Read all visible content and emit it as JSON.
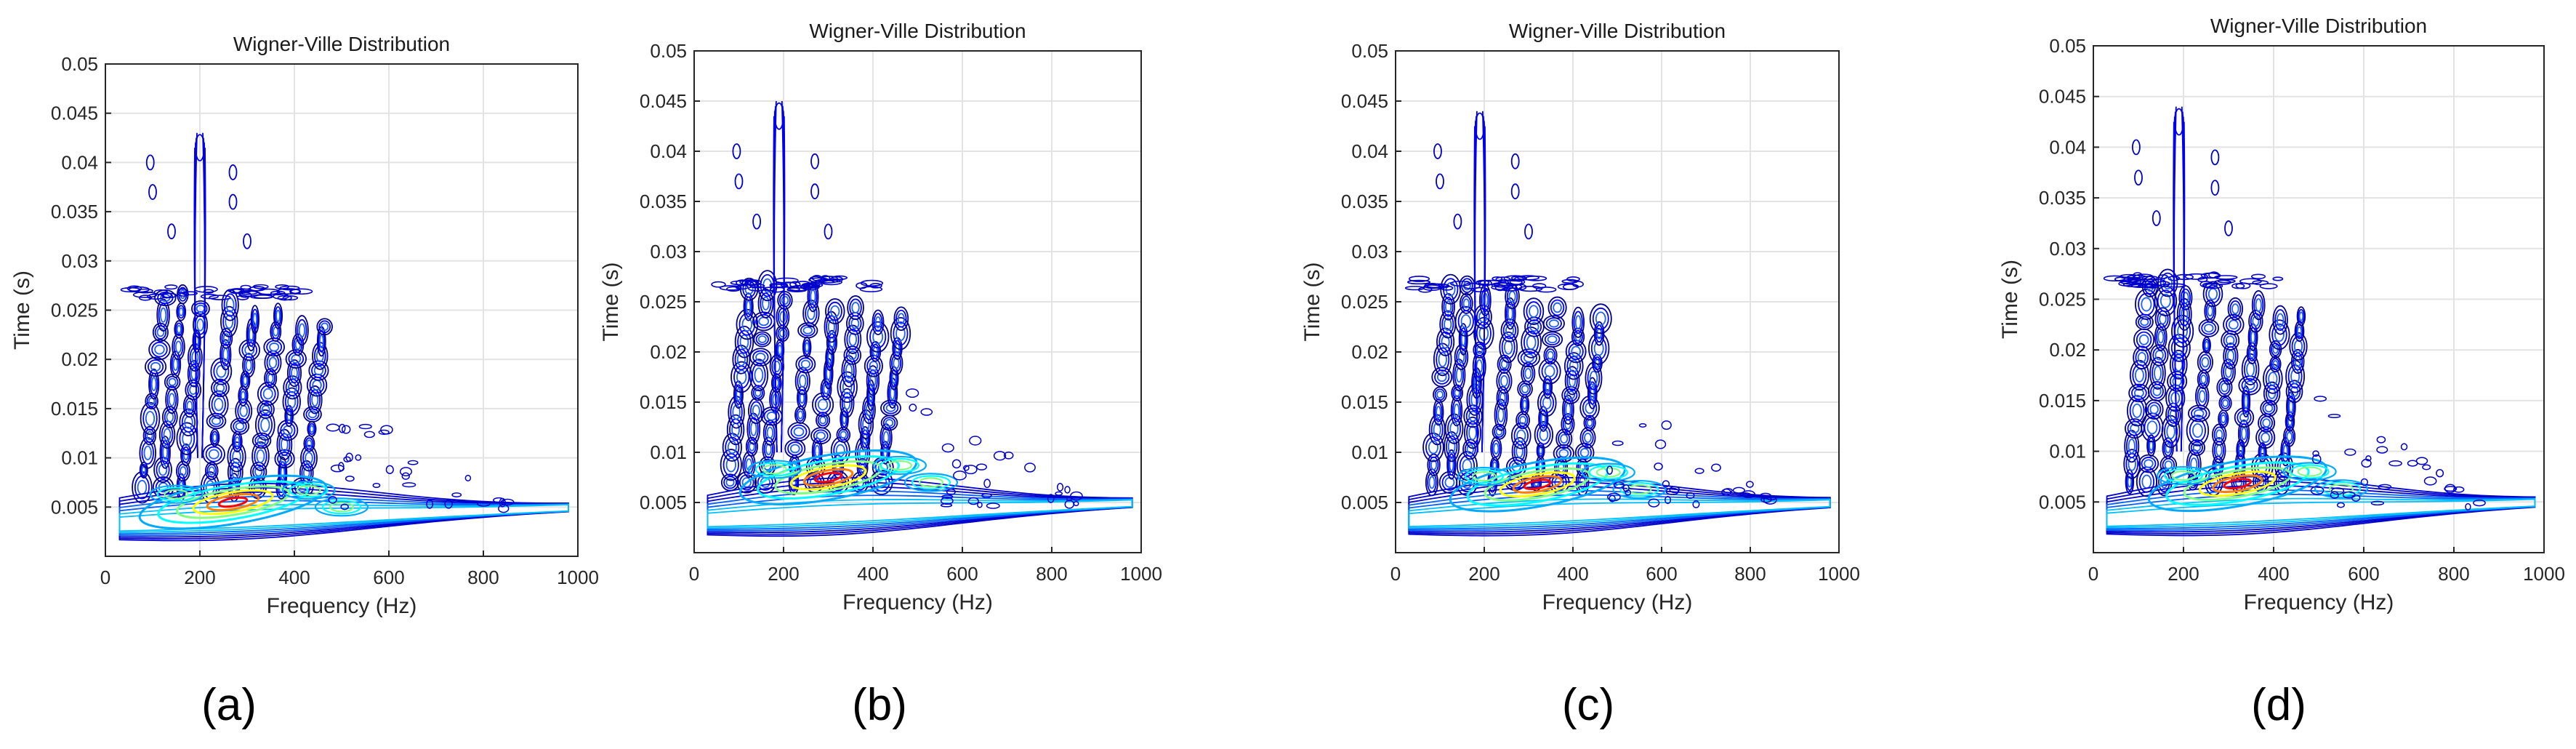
{
  "figure": {
    "panel_labels": [
      "(a)",
      "(b)",
      "(c)",
      "(d)"
    ]
  },
  "chart_data": [
    {
      "type": "contour",
      "title": "Wigner-Ville Distribution",
      "xlabel": "Frequency (Hz)",
      "ylabel": "Time (s)",
      "xlim": [
        0,
        1000
      ],
      "ylim": [
        0,
        0.05
      ],
      "xticks": [
        "0",
        "200",
        "400",
        "600",
        "800",
        "1000"
      ],
      "yticks": [
        "0.005",
        "0.01",
        "0.015",
        "0.02",
        "0.025",
        "0.03",
        "0.035",
        "0.04",
        "0.045",
        "0.05"
      ],
      "grid": true,
      "colormap": [
        "#00007f",
        "#0000ff",
        "#00aaff",
        "#00ffff",
        "#80ff80",
        "#ffff00",
        "#ff8000",
        "#ff0000"
      ],
      "peak": {
        "frequency": 270,
        "time": 0.0055
      },
      "tonal_ridge": {
        "frequency": 200,
        "time_max": 0.043
      },
      "panel": "(a)"
    },
    {
      "type": "contour",
      "title": "Wigner-Ville Distribution",
      "xlabel": "Frequency (Hz)",
      "ylabel": "Time (s)",
      "xlim": [
        0,
        1000
      ],
      "ylim": [
        0,
        0.05
      ],
      "xticks": [
        "0",
        "200",
        "400",
        "600",
        "800",
        "1000"
      ],
      "yticks": [
        "0.005",
        "0.01",
        "0.015",
        "0.02",
        "0.025",
        "0.03",
        "0.035",
        "0.04",
        "0.045",
        "0.05"
      ],
      "grid": true,
      "colormap": [
        "#00007f",
        "#0000ff",
        "#00aaff",
        "#00ffff",
        "#80ff80",
        "#ffff00",
        "#ff8000",
        "#ff0000"
      ],
      "peak": {
        "frequency": 300,
        "time": 0.0075
      },
      "tonal_ridge": {
        "frequency": 190,
        "time_max": 0.045
      },
      "panel": "(b)"
    },
    {
      "type": "contour",
      "title": "Wigner-Ville Distribution",
      "xlabel": "Frequency (Hz)",
      "ylabel": "Time (s)",
      "xlim": [
        0,
        1000
      ],
      "ylim": [
        0,
        0.05
      ],
      "xticks": [
        "0",
        "200",
        "400",
        "600",
        "800",
        "1000"
      ],
      "yticks": [
        "0.005",
        "0.01",
        "0.015",
        "0.02",
        "0.025",
        "0.03",
        "0.035",
        "0.04",
        "0.045",
        "0.05"
      ],
      "grid": true,
      "colormap": [
        "#00007f",
        "#0000ff",
        "#00aaff",
        "#00ffff",
        "#80ff80",
        "#ffff00",
        "#ff8000",
        "#ff0000"
      ],
      "peak": {
        "frequency": 320,
        "time": 0.0068
      },
      "tonal_ridge": {
        "frequency": 190,
        "time_max": 0.044
      },
      "panel": "(c)"
    },
    {
      "type": "contour",
      "title": "Wigner-Ville Distribution",
      "xlabel": "Frequency (Hz)",
      "ylabel": "Time (s)",
      "xlim": [
        0,
        1000
      ],
      "ylim": [
        0,
        0.05
      ],
      "xticks": [
        "0",
        "200",
        "400",
        "600",
        "800",
        "1000"
      ],
      "yticks": [
        "0.005",
        "0.01",
        "0.015",
        "0.02",
        "0.025",
        "0.03",
        "0.035",
        "0.04",
        "0.045",
        "0.05"
      ],
      "grid": true,
      "colormap": [
        "#00007f",
        "#0000ff",
        "#00aaff",
        "#00ffff",
        "#80ff80",
        "#ffff00",
        "#ff8000",
        "#ff0000"
      ],
      "peak": {
        "frequency": 320,
        "time": 0.0068
      },
      "tonal_ridge": {
        "frequency": 190,
        "time_max": 0.044
      },
      "panel": "(d)"
    }
  ]
}
